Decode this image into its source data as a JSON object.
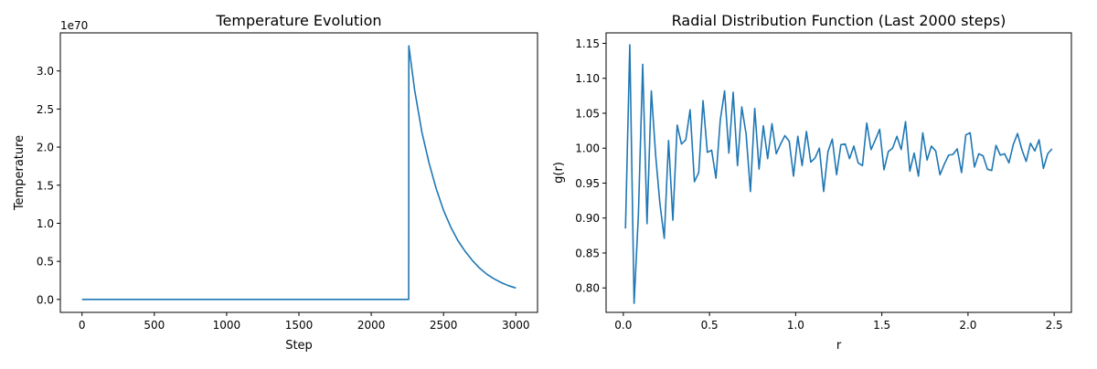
{
  "chart_data": [
    {
      "type": "line",
      "title": "Temperature Evolution",
      "xlabel": "Step",
      "ylabel": "Temperature",
      "offset_text": "1e70",
      "xlim": [
        -150,
        3150
      ],
      "ylim": [
        -0.17,
        3.5
      ],
      "xticks": [
        0,
        500,
        1000,
        1500,
        2000,
        2500,
        3000
      ],
      "xtick_labels": [
        "0",
        "500",
        "1000",
        "1500",
        "2000",
        "2500",
        "3000"
      ],
      "yticks": [
        0.0,
        0.5,
        1.0,
        1.5,
        2.0,
        2.5,
        3.0
      ],
      "ytick_labels": [
        "0.0",
        "0.5",
        "1.0",
        "1.5",
        "2.0",
        "2.5",
        "3.0"
      ],
      "grid": false,
      "series": [
        {
          "color": "#1f77b4",
          "x": [
            0,
            2259,
            2260,
            2300,
            2350,
            2400,
            2450,
            2500,
            2550,
            2600,
            2650,
            2700,
            2750,
            2800,
            2850,
            2900,
            2950,
            3000
          ],
          "y": [
            0,
            0,
            3.33,
            2.75,
            2.2,
            1.79,
            1.45,
            1.17,
            0.95,
            0.77,
            0.63,
            0.51,
            0.41,
            0.33,
            0.27,
            0.22,
            0.18,
            0.15
          ]
        }
      ]
    },
    {
      "type": "line",
      "title": "Radial Distribution Function (Last 2000 steps)",
      "xlabel": "r",
      "ylabel": "g(r)",
      "xlim": [
        -0.1,
        2.6
      ],
      "ylim": [
        0.765,
        1.165
      ],
      "xticks": [
        0.0,
        0.5,
        1.0,
        1.5,
        2.0,
        2.5
      ],
      "xtick_labels": [
        "0.0",
        "0.5",
        "1.0",
        "1.5",
        "2.0",
        "2.5"
      ],
      "yticks": [
        0.8,
        0.85,
        0.9,
        0.95,
        1.0,
        1.05,
        1.1,
        1.15
      ],
      "ytick_labels": [
        "0.80",
        "0.85",
        "0.90",
        "0.95",
        "1.00",
        "1.05",
        "1.10",
        "1.15"
      ],
      "grid": false,
      "series": [
        {
          "color": "#1f77b4",
          "x": [
            0.0125,
            0.0375,
            0.0625,
            0.0875,
            0.1125,
            0.1375,
            0.1625,
            0.1875,
            0.2125,
            0.2375,
            0.2625,
            0.2875,
            0.3125,
            0.3375,
            0.3625,
            0.3875,
            0.4125,
            0.4375,
            0.4625,
            0.4875,
            0.5125,
            0.5375,
            0.5625,
            0.5875,
            0.6125,
            0.6375,
            0.6625,
            0.6875,
            0.7125,
            0.7375,
            0.7625,
            0.7875,
            0.8125,
            0.8375,
            0.8625,
            0.8875,
            0.9125,
            0.9375,
            0.9625,
            0.9875,
            1.0125,
            1.0375,
            1.0625,
            1.0875,
            1.1125,
            1.1375,
            1.1625,
            1.1875,
            1.2125,
            1.2375,
            1.2625,
            1.2875,
            1.3125,
            1.3375,
            1.3625,
            1.3875,
            1.4125,
            1.4375,
            1.4625,
            1.4875,
            1.5125,
            1.5375,
            1.5625,
            1.5875,
            1.6125,
            1.6375,
            1.6625,
            1.6875,
            1.7125,
            1.7375,
            1.7625,
            1.7875,
            1.8125,
            1.8375,
            1.8625,
            1.8875,
            1.9125,
            1.9375,
            1.9625,
            1.9875,
            2.0125,
            2.0375,
            2.0625,
            2.0875,
            2.1125,
            2.1375,
            2.1625,
            2.1875,
            2.2125,
            2.2375,
            2.2625,
            2.2875,
            2.3125,
            2.3375,
            2.3625,
            2.3875,
            2.4125,
            2.4375,
            2.4625,
            2.4875
          ],
          "y": [
            0.885,
            1.148,
            0.778,
            0.905,
            1.12,
            0.892,
            1.082,
            0.99,
            0.92,
            0.871,
            1.011,
            0.897,
            1.033,
            1.006,
            1.012,
            1.055,
            0.952,
            0.965,
            1.068,
            0.994,
            0.997,
            0.957,
            1.04,
            1.082,
            0.993,
            1.08,
            0.975,
            1.059,
            1.02,
            0.938,
            1.057,
            0.97,
            1.032,
            0.985,
            1.035,
            0.992,
            1.006,
            1.018,
            1.01,
            0.96,
            1.017,
            0.975,
            1.024,
            0.98,
            0.986,
            1.0,
            0.938,
            0.995,
            1.013,
            0.962,
            1.005,
            1.006,
            0.985,
            1.003,
            0.979,
            0.975,
            1.036,
            0.998,
            1.012,
            1.027,
            0.969,
            0.995,
            1.0,
            1.017,
            0.998,
            1.038,
            0.967,
            0.993,
            0.96,
            1.022,
            0.983,
            1.003,
            0.996,
            0.962,
            0.977,
            0.99,
            0.991,
            0.999,
            0.965,
            1.019,
            1.022,
            0.973,
            0.992,
            0.989,
            0.97,
            0.968,
            1.004,
            0.99,
            0.992,
            0.979,
            1.005,
            1.021,
            0.998,
            0.981,
            1.007,
            0.996,
            1.012,
            0.971,
            0.992,
            0.999
          ]
        }
      ]
    }
  ]
}
